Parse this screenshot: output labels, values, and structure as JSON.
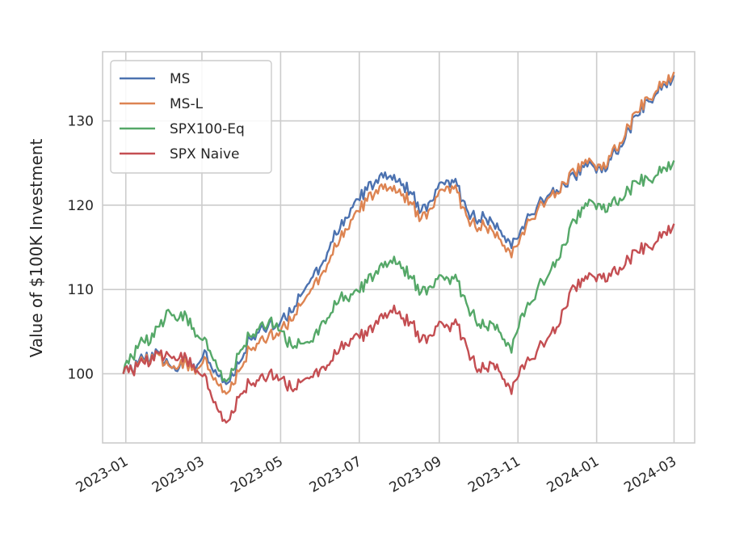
{
  "chart_data": {
    "type": "line",
    "ylabel": "Value of $100K Investment",
    "xlabel": "",
    "xlim": [
      "2022-12-14",
      "2024-03-17"
    ],
    "ylim": [
      91.8,
      138.2
    ],
    "x_ticks": [
      "2023-01-01",
      "2023-03-01",
      "2023-05-01",
      "2023-07-01",
      "2023-09-01",
      "2023-11-01",
      "2024-01-01",
      "2024-03-01"
    ],
    "x_tick_labels": [
      "2023-01",
      "2023-03",
      "2023-05",
      "2023-07",
      "2023-09",
      "2023-11",
      "2024-01",
      "2024-03"
    ],
    "y_ticks": [
      100,
      110,
      120,
      130
    ],
    "grid": true,
    "legend_position": "upper-left",
    "series": [
      {
        "name": "MS",
        "color": "#4c72b0",
        "points": [
          [
            "2022-12-30",
            100
          ],
          [
            "2023-01-06",
            100.4
          ],
          [
            "2023-01-13",
            102.3
          ],
          [
            "2023-01-20",
            101.6
          ],
          [
            "2023-01-27",
            102.5
          ],
          [
            "2023-02-03",
            101.2
          ],
          [
            "2023-02-10",
            100.3
          ],
          [
            "2023-02-17",
            101.5
          ],
          [
            "2023-02-24",
            100.4
          ],
          [
            "2023-03-03",
            102.8
          ],
          [
            "2023-03-10",
            100.2
          ],
          [
            "2023-03-17",
            99.0
          ],
          [
            "2023-03-24",
            100.1
          ],
          [
            "2023-03-31",
            101.5
          ],
          [
            "2023-04-07",
            104.2
          ],
          [
            "2023-04-14",
            104.9
          ],
          [
            "2023-04-21",
            105.5
          ],
          [
            "2023-04-28",
            105.9
          ],
          [
            "2023-05-05",
            106.5
          ],
          [
            "2023-05-12",
            108.0
          ],
          [
            "2023-05-19",
            109.8
          ],
          [
            "2023-05-26",
            111.5
          ],
          [
            "2023-06-02",
            113.0
          ],
          [
            "2023-06-09",
            115.6
          ],
          [
            "2023-06-16",
            117.2
          ],
          [
            "2023-06-23",
            118.6
          ],
          [
            "2023-06-30",
            120.7
          ],
          [
            "2023-07-07",
            121.8
          ],
          [
            "2023-07-14",
            123.0
          ],
          [
            "2023-07-21",
            123.9
          ],
          [
            "2023-07-28",
            123.6
          ],
          [
            "2023-08-04",
            122.5
          ],
          [
            "2023-08-11",
            121.3
          ],
          [
            "2023-08-18",
            119.3
          ],
          [
            "2023-08-25",
            120.5
          ],
          [
            "2023-09-01",
            122.6
          ],
          [
            "2023-09-08",
            122.9
          ],
          [
            "2023-09-15",
            122.3
          ],
          [
            "2023-09-22",
            119.6
          ],
          [
            "2023-09-29",
            118.3
          ],
          [
            "2023-10-06",
            118.6
          ],
          [
            "2023-10-13",
            117.8
          ],
          [
            "2023-10-20",
            116.3
          ],
          [
            "2023-10-27",
            114.9
          ],
          [
            "2023-11-03",
            117.0
          ],
          [
            "2023-11-10",
            118.8
          ],
          [
            "2023-11-17",
            120.3
          ],
          [
            "2023-11-24",
            121.1
          ],
          [
            "2023-12-01",
            121.8
          ],
          [
            "2023-12-08",
            122.2
          ],
          [
            "2023-12-15",
            123.4
          ],
          [
            "2023-12-22",
            124.5
          ],
          [
            "2023-12-29",
            124.7
          ],
          [
            "2024-01-05",
            123.9
          ],
          [
            "2024-01-12",
            125.4
          ],
          [
            "2024-01-19",
            127.0
          ],
          [
            "2024-01-26",
            129.0
          ],
          [
            "2024-02-02",
            130.6
          ],
          [
            "2024-02-09",
            132.5
          ],
          [
            "2024-02-16",
            133.2
          ],
          [
            "2024-02-23",
            134.3
          ],
          [
            "2024-03-01",
            135.4
          ]
        ]
      },
      {
        "name": "MS-L",
        "color": "#dd8452",
        "points": [
          [
            "2022-12-30",
            100
          ],
          [
            "2023-01-06",
            100.3
          ],
          [
            "2023-01-13",
            102.0
          ],
          [
            "2023-01-20",
            101.4
          ],
          [
            "2023-01-27",
            102.2
          ],
          [
            "2023-02-03",
            101.0
          ],
          [
            "2023-02-10",
            100.6
          ],
          [
            "2023-02-17",
            101.3
          ],
          [
            "2023-02-24",
            100.0
          ],
          [
            "2023-03-03",
            102.0
          ],
          [
            "2023-03-10",
            99.3
          ],
          [
            "2023-03-17",
            97.8
          ],
          [
            "2023-03-24",
            99.0
          ],
          [
            "2023-03-31",
            100.6
          ],
          [
            "2023-04-07",
            103.0
          ],
          [
            "2023-04-14",
            103.6
          ],
          [
            "2023-04-21",
            104.2
          ],
          [
            "2023-04-28",
            104.8
          ],
          [
            "2023-05-05",
            105.5
          ],
          [
            "2023-05-12",
            107.0
          ],
          [
            "2023-05-19",
            108.6
          ],
          [
            "2023-05-26",
            110.2
          ],
          [
            "2023-06-02",
            111.9
          ],
          [
            "2023-06-09",
            114.0
          ],
          [
            "2023-06-16",
            115.9
          ],
          [
            "2023-06-23",
            117.2
          ],
          [
            "2023-06-30",
            119.3
          ],
          [
            "2023-07-07",
            120.5
          ],
          [
            "2023-07-14",
            121.8
          ],
          [
            "2023-07-21",
            122.5
          ],
          [
            "2023-07-28",
            122.3
          ],
          [
            "2023-08-04",
            121.3
          ],
          [
            "2023-08-11",
            120.1
          ],
          [
            "2023-08-18",
            118.4
          ],
          [
            "2023-08-25",
            119.6
          ],
          [
            "2023-09-01",
            121.7
          ],
          [
            "2023-09-08",
            122.2
          ],
          [
            "2023-09-15",
            121.5
          ],
          [
            "2023-09-22",
            118.8
          ],
          [
            "2023-09-29",
            117.4
          ],
          [
            "2023-10-06",
            117.6
          ],
          [
            "2023-10-13",
            116.8
          ],
          [
            "2023-10-20",
            115.2
          ],
          [
            "2023-10-27",
            113.8
          ],
          [
            "2023-11-03",
            116.3
          ],
          [
            "2023-11-10",
            118.2
          ],
          [
            "2023-11-17",
            119.8
          ],
          [
            "2023-11-24",
            120.8
          ],
          [
            "2023-12-01",
            121.5
          ],
          [
            "2023-12-08",
            122.5
          ],
          [
            "2023-12-15",
            123.9
          ],
          [
            "2023-12-22",
            124.9
          ],
          [
            "2023-12-29",
            125.0
          ],
          [
            "2024-01-05",
            124.2
          ],
          [
            "2024-01-12",
            125.8
          ],
          [
            "2024-01-19",
            127.4
          ],
          [
            "2024-01-26",
            129.4
          ],
          [
            "2024-02-02",
            131.0
          ],
          [
            "2024-02-09",
            132.8
          ],
          [
            "2024-02-16",
            133.5
          ],
          [
            "2024-02-23",
            134.6
          ],
          [
            "2024-03-01",
            135.8
          ]
        ]
      },
      {
        "name": "SPX100-Eq",
        "color": "#55a868",
        "points": [
          [
            "2022-12-30",
            100
          ],
          [
            "2023-01-06",
            102.0
          ],
          [
            "2023-01-13",
            104.3
          ],
          [
            "2023-01-20",
            103.7
          ],
          [
            "2023-01-27",
            105.6
          ],
          [
            "2023-02-03",
            107.6
          ],
          [
            "2023-02-10",
            106.3
          ],
          [
            "2023-02-17",
            106.9
          ],
          [
            "2023-02-24",
            104.4
          ],
          [
            "2023-03-03",
            104.3
          ],
          [
            "2023-03-10",
            101.6
          ],
          [
            "2023-03-17",
            99.2
          ],
          [
            "2023-03-24",
            100.6
          ],
          [
            "2023-03-31",
            102.8
          ],
          [
            "2023-04-07",
            104.5
          ],
          [
            "2023-04-14",
            105.3
          ],
          [
            "2023-04-21",
            105.8
          ],
          [
            "2023-04-28",
            106.0
          ],
          [
            "2023-05-05",
            103.8
          ],
          [
            "2023-05-12",
            103.3
          ],
          [
            "2023-05-19",
            103.6
          ],
          [
            "2023-05-26",
            103.8
          ],
          [
            "2023-06-02",
            106.2
          ],
          [
            "2023-06-09",
            107.2
          ],
          [
            "2023-06-16",
            109.0
          ],
          [
            "2023-06-23",
            108.6
          ],
          [
            "2023-06-30",
            109.8
          ],
          [
            "2023-07-07",
            110.8
          ],
          [
            "2023-07-14",
            112.2
          ],
          [
            "2023-07-21",
            113.3
          ],
          [
            "2023-07-28",
            113.9
          ],
          [
            "2023-08-04",
            112.6
          ],
          [
            "2023-08-11",
            111.3
          ],
          [
            "2023-08-18",
            109.7
          ],
          [
            "2023-08-25",
            110.4
          ],
          [
            "2023-09-01",
            111.7
          ],
          [
            "2023-09-08",
            111.3
          ],
          [
            "2023-09-15",
            111.0
          ],
          [
            "2023-09-22",
            108.4
          ],
          [
            "2023-09-29",
            106.4
          ],
          [
            "2023-10-06",
            105.6
          ],
          [
            "2023-10-13",
            105.9
          ],
          [
            "2023-10-20",
            104.1
          ],
          [
            "2023-10-27",
            102.5
          ],
          [
            "2023-11-03",
            106.8
          ],
          [
            "2023-11-10",
            108.2
          ],
          [
            "2023-11-17",
            110.6
          ],
          [
            "2023-11-24",
            111.5
          ],
          [
            "2023-12-01",
            113.5
          ],
          [
            "2023-12-08",
            115.3
          ],
          [
            "2023-12-15",
            118.2
          ],
          [
            "2023-12-22",
            119.6
          ],
          [
            "2023-12-29",
            120.4
          ],
          [
            "2024-01-05",
            119.5
          ],
          [
            "2024-01-12",
            119.9
          ],
          [
            "2024-01-19",
            120.8
          ],
          [
            "2024-01-26",
            121.8
          ],
          [
            "2024-02-02",
            122.6
          ],
          [
            "2024-02-09",
            123.3
          ],
          [
            "2024-02-16",
            123.5
          ],
          [
            "2024-02-23",
            124.4
          ],
          [
            "2024-03-01",
            125.3
          ]
        ]
      },
      {
        "name": "SPX Naive",
        "color": "#c44e52",
        "points": [
          [
            "2022-12-30",
            100
          ],
          [
            "2023-01-06",
            100.3
          ],
          [
            "2023-01-13",
            101.8
          ],
          [
            "2023-01-20",
            101.2
          ],
          [
            "2023-01-27",
            102.4
          ],
          [
            "2023-02-03",
            102.3
          ],
          [
            "2023-02-10",
            101.6
          ],
          [
            "2023-02-17",
            101.9
          ],
          [
            "2023-02-24",
            100.2
          ],
          [
            "2023-03-03",
            100.0
          ],
          [
            "2023-03-10",
            96.6
          ],
          [
            "2023-03-17",
            94.4
          ],
          [
            "2023-03-24",
            95.6
          ],
          [
            "2023-03-31",
            97.6
          ],
          [
            "2023-04-07",
            98.9
          ],
          [
            "2023-04-14",
            99.2
          ],
          [
            "2023-04-21",
            99.6
          ],
          [
            "2023-04-28",
            99.9
          ],
          [
            "2023-05-05",
            98.6
          ],
          [
            "2023-05-12",
            98.2
          ],
          [
            "2023-05-19",
            99.3
          ],
          [
            "2023-05-26",
            99.6
          ],
          [
            "2023-06-02",
            100.8
          ],
          [
            "2023-06-09",
            101.5
          ],
          [
            "2023-06-16",
            103.0
          ],
          [
            "2023-06-23",
            103.3
          ],
          [
            "2023-06-30",
            104.6
          ],
          [
            "2023-07-07",
            104.5
          ],
          [
            "2023-07-14",
            106.3
          ],
          [
            "2023-07-21",
            107.2
          ],
          [
            "2023-07-28",
            108.1
          ],
          [
            "2023-08-04",
            106.6
          ],
          [
            "2023-08-11",
            106.0
          ],
          [
            "2023-08-18",
            104.0
          ],
          [
            "2023-08-25",
            104.6
          ],
          [
            "2023-09-01",
            106.2
          ],
          [
            "2023-09-08",
            105.6
          ],
          [
            "2023-09-15",
            105.8
          ],
          [
            "2023-09-22",
            103.4
          ],
          [
            "2023-09-29",
            100.8
          ],
          [
            "2023-10-06",
            100.6
          ],
          [
            "2023-10-13",
            101.2
          ],
          [
            "2023-10-20",
            99.4
          ],
          [
            "2023-10-27",
            97.6
          ],
          [
            "2023-11-03",
            100.8
          ],
          [
            "2023-11-10",
            101.6
          ],
          [
            "2023-11-17",
            103.2
          ],
          [
            "2023-11-24",
            104.2
          ],
          [
            "2023-12-01",
            105.5
          ],
          [
            "2023-12-08",
            107.8
          ],
          [
            "2023-12-15",
            110.3
          ],
          [
            "2023-12-22",
            111.0
          ],
          [
            "2023-12-29",
            111.6
          ],
          [
            "2024-01-05",
            111.3
          ],
          [
            "2024-01-12",
            111.6
          ],
          [
            "2024-01-19",
            112.6
          ],
          [
            "2024-01-26",
            113.6
          ],
          [
            "2024-02-02",
            114.4
          ],
          [
            "2024-02-09",
            115.3
          ],
          [
            "2024-02-16",
            115.6
          ],
          [
            "2024-02-23",
            116.8
          ],
          [
            "2024-03-01",
            117.8
          ]
        ]
      }
    ]
  }
}
